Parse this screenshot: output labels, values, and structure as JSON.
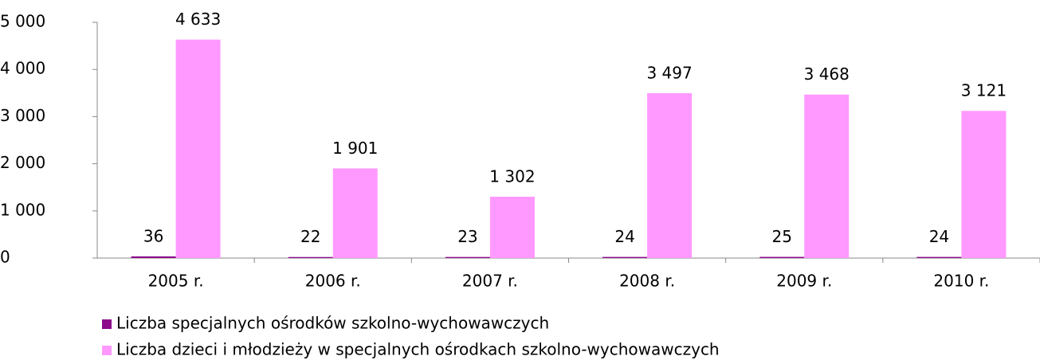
{
  "chart_data": {
    "type": "bar",
    "categories": [
      "2005 r.",
      "2006 r.",
      "2007 r.",
      "2008 r.",
      "2009 r.",
      "2010 r."
    ],
    "series": [
      {
        "name": "Liczba specjalnych ośrodków szkolno-wychowawczych",
        "color": "#8b0a8b",
        "values": [
          36,
          22,
          23,
          24,
          25,
          24
        ]
      },
      {
        "name": "Liczba dzieci i młodzieży w specjalnych ośrodkach szkolno-wychowawczych",
        "color": "#ff99ff",
        "values": [
          4633,
          1901,
          1302,
          3497,
          3468,
          3121
        ],
        "value_labels": [
          "4 633",
          "1 901",
          "1 302",
          "3 497",
          "3 468",
          "3 121"
        ]
      }
    ],
    "ylim": [
      0,
      5000
    ],
    "yticks": [
      0,
      {
        "value": 1000,
        "label": "1 000"
      },
      {
        "value": 2000,
        "label": "2 000"
      },
      {
        "value": 3000,
        "label": "3 000"
      },
      {
        "value": 4000,
        "label": "4 000"
      },
      {
        "value": 5000,
        "label": "5 000"
      }
    ],
    "legend": "bottom"
  }
}
